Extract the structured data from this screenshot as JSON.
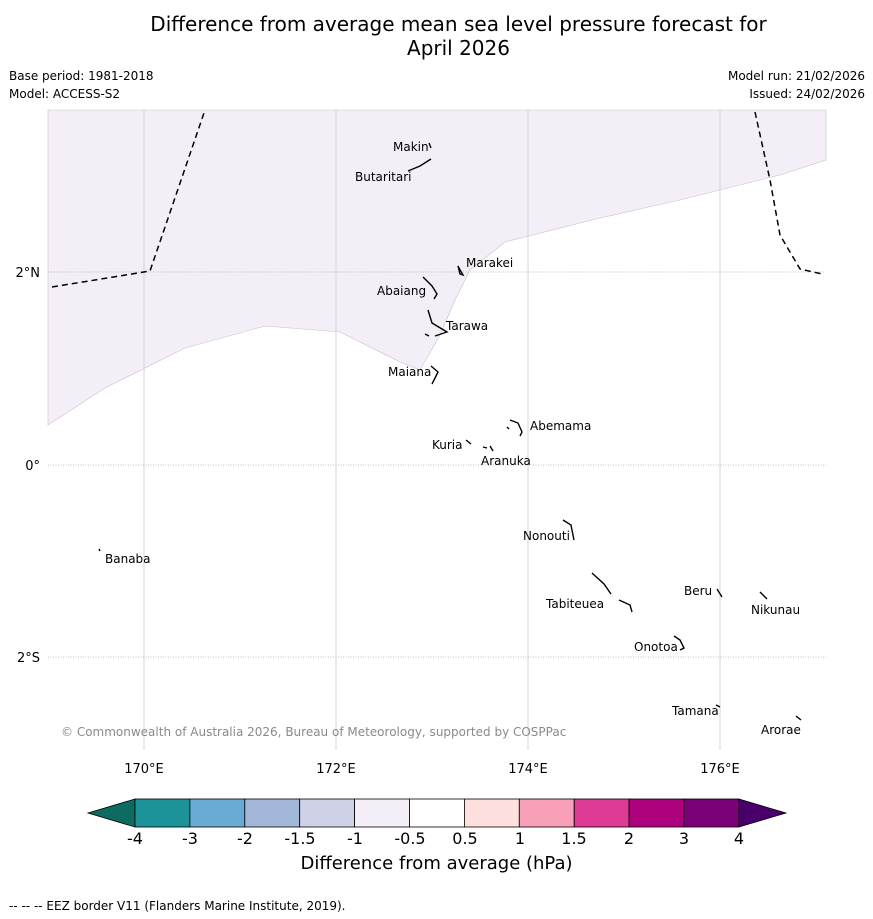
{
  "title_line1": "Difference from average mean sea level pressure forecast for",
  "title_line2": "April 2026",
  "meta": {
    "base_period": "Base period: 1981-2018",
    "model": "Model: ACCESS-S2",
    "model_run": "Model run: 21/02/2026",
    "issued": "Issued: 24/02/2026"
  },
  "map": {
    "lon_labels": [
      "170°E",
      "172°E",
      "174°E",
      "176°E"
    ],
    "lat_labels": [
      "2°N",
      "0°",
      "2°S"
    ],
    "islands": [
      "Makin",
      "Butaritari",
      "Marakei",
      "Abaiang",
      "Tarawa",
      "Maiana",
      "Abemama",
      "Kuria",
      "Aranuka",
      "Nonouti",
      "Banaba",
      "Tabiteuea",
      "Beru",
      "Nikunau",
      "Onotoa",
      "Tamana",
      "Arorae"
    ],
    "copyright": "© Commonwealth of Australia 2026, Bureau of Meteorology, supported by COSPPac",
    "shaded_colour": "#f4eef6"
  },
  "colorbar": {
    "ticks": [
      "-4",
      "-3",
      "-2",
      "-1.5",
      "-1",
      "-0.5",
      "0.5",
      "1",
      "1.5",
      "2",
      "3",
      "4"
    ],
    "colors": [
      "#0e6b62",
      "#1c9399",
      "#69aad2",
      "#a3b8d9",
      "#cfd1e6",
      "#f4eef6",
      "#ffffff",
      "#fde0dd",
      "#f9a0b9",
      "#dd3b96",
      "#ae017e",
      "#7a0177",
      "#49006a"
    ],
    "label": "Difference from average (hPa)"
  },
  "footer": "--  --  -- EEZ border V11 (Flanders Marine Institute, 2019)."
}
